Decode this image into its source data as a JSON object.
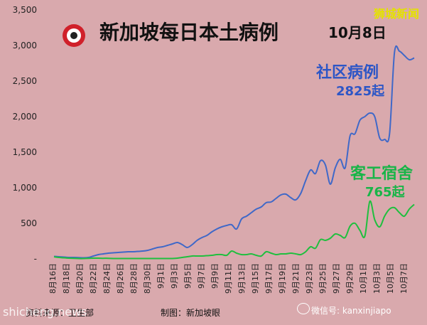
{
  "title": "新加坡每日本土病例",
  "date_label": "10月8日",
  "brand": "狮城新闻",
  "source_left": "资料来源：卫生部",
  "source_right": "制图：新加坡眼",
  "watermark_left": "shicheng.news",
  "watermark_right": "微信号: kanxinjiapo",
  "annotations": {
    "community_name": "社区病例",
    "community_value": "2825起",
    "dorm_name": "客工宿舍",
    "dorm_value": "765起"
  },
  "colors": {
    "background": "#d9a9ad",
    "community": "#3f68c8",
    "dorm": "#1fbf3e"
  },
  "chart_data": {
    "type": "line",
    "title": "新加坡每日本土病例",
    "xlabel": "",
    "ylabel": "",
    "ylim": [
      0,
      3500
    ],
    "yticks": [
      0,
      500,
      1000,
      1500,
      2000,
      2500,
      3000,
      3500
    ],
    "ytick_labels": [
      "-",
      "500",
      "1,000",
      "1,500",
      "2,000",
      "2,500",
      "3,000",
      "3,500"
    ],
    "x_tick_labels": [
      "8月16日",
      "8月18日",
      "8月20日",
      "8月22日",
      "8月24日",
      "8月26日",
      "8月28日",
      "8月30日",
      "9月1日",
      "9月3日",
      "9月5日",
      "9月7日",
      "9月9日",
      "9月11日",
      "9月13日",
      "9月15日",
      "9月17日",
      "9月19日",
      "9月21日",
      "9月23日",
      "9月25日",
      "9月27日",
      "9月29日",
      "10月1日",
      "10月3日",
      "10月5日",
      "10月7日"
    ],
    "grid": false,
    "legend": "none",
    "series": [
      {
        "name": "社区病例",
        "values": [
          35,
          30,
          25,
          20,
          20,
          18,
          15,
          20,
          40,
          60,
          70,
          80,
          85,
          90,
          95,
          100,
          100,
          105,
          110,
          120,
          140,
          160,
          170,
          190,
          210,
          230,
          200,
          160,
          200,
          260,
          300,
          330,
          380,
          420,
          450,
          470,
          480,
          420,
          560,
          600,
          650,
          700,
          730,
          790,
          800,
          850,
          900,
          910,
          860,
          830,
          920,
          1100,
          1250,
          1200,
          1380,
          1320,
          1050,
          1280,
          1400,
          1280,
          1730,
          1760,
          1950,
          2000,
          2050,
          2000,
          1700,
          1680,
          1760,
          2900,
          2920,
          2860,
          2800,
          2825
        ]
      },
      {
        "name": "客工宿舍",
        "values": [
          30,
          20,
          15,
          10,
          8,
          5,
          5,
          8,
          10,
          10,
          8,
          8,
          5,
          5,
          5,
          5,
          5,
          5,
          5,
          5,
          5,
          5,
          5,
          5,
          5,
          10,
          20,
          30,
          40,
          40,
          40,
          45,
          50,
          60,
          60,
          50,
          110,
          80,
          60,
          60,
          70,
          50,
          40,
          100,
          80,
          60,
          70,
          70,
          80,
          70,
          60,
          100,
          170,
          150,
          270,
          260,
          290,
          350,
          330,
          300,
          460,
          500,
          400,
          320,
          810,
          550,
          450,
          600,
          700,
          720,
          650,
          600,
          700,
          765
        ]
      }
    ]
  }
}
